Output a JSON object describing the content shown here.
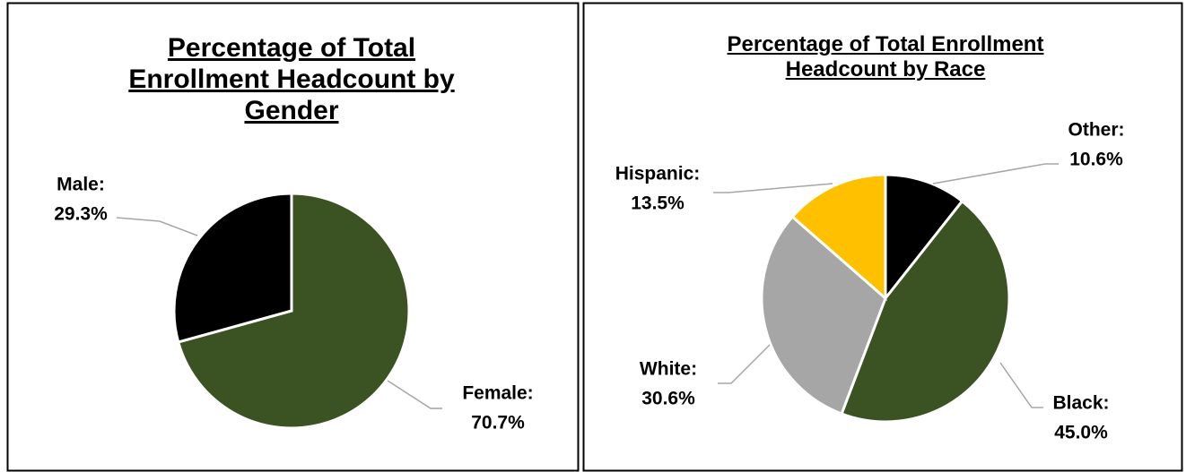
{
  "chart_data": [
    {
      "type": "pie",
      "title": "Percentage of Total Enrollment Headcount by Gender",
      "categories": [
        "Female:",
        "Male:"
      ],
      "values": [
        70.7,
        29.3
      ],
      "value_labels": [
        "70.7%",
        "29.3%"
      ],
      "colors": [
        "#3b5323",
        "#000000"
      ]
    },
    {
      "type": "pie",
      "title": "Percentage of Total Enrollment Headcount by Race",
      "categories": [
        "Other:",
        "Black:",
        "White:",
        "Hispanic:"
      ],
      "values": [
        10.6,
        45.0,
        30.6,
        13.5
      ],
      "value_labels": [
        "10.6%",
        "45.0%",
        "30.6%",
        "13.5%"
      ],
      "colors": [
        "#000000",
        "#3b5323",
        "#a6a6a6",
        "#ffc000"
      ]
    }
  ]
}
